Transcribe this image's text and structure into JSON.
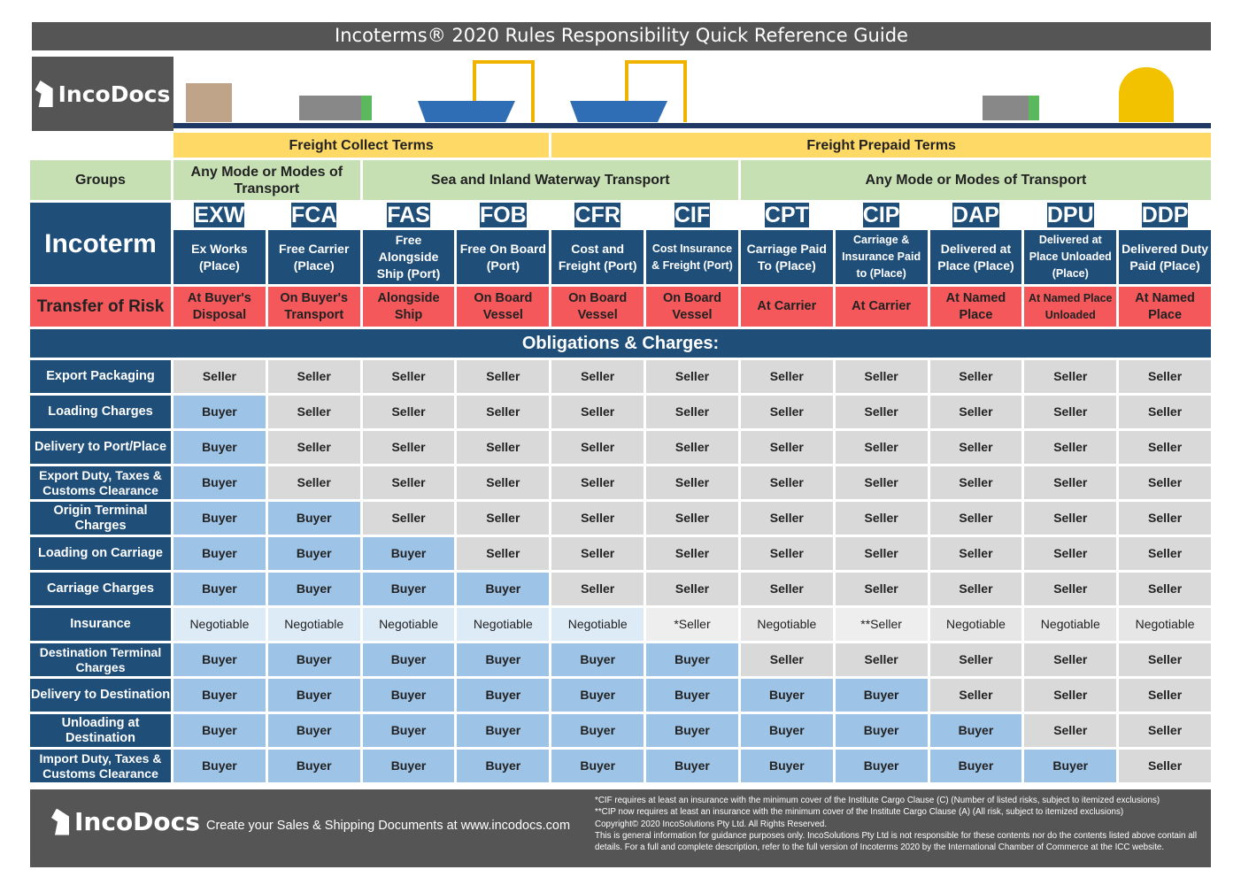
{
  "title": "Incoterms® 2020 Rules Responsibility Quick Reference Guide",
  "brand": "IncoDocs",
  "freight": [
    {
      "label": "Freight Collect Terms",
      "span": 4
    },
    {
      "label": "Freight Prepaid Terms",
      "span": 7
    }
  ],
  "groups_label": "Groups",
  "groups": [
    {
      "label": "Any Mode or Modes of Transport",
      "span": 2
    },
    {
      "label": "Sea and Inland Waterway Transport",
      "span": 4
    },
    {
      "label": "Any Mode or Modes of Transport",
      "span": 5
    }
  ],
  "incoterm_label": "Incoterm",
  "risk_label": "Transfer of Risk",
  "terms": [
    {
      "code": "EXW",
      "name": "Ex Works (Place)",
      "risk": "At Buyer's Disposal"
    },
    {
      "code": "FCA",
      "name": "Free Carrier (Place)",
      "risk": "On Buyer's Transport"
    },
    {
      "code": "FAS",
      "name": "Free Alongside Ship (Port)",
      "risk": "Alongside Ship"
    },
    {
      "code": "FOB",
      "name": "Free On Board (Port)",
      "risk": "On Board Vessel"
    },
    {
      "code": "CFR",
      "name": "Cost and Freight (Port)",
      "risk": "On Board Vessel"
    },
    {
      "code": "CIF",
      "name": "Cost Insurance & Freight (Port)",
      "risk": "On Board Vessel"
    },
    {
      "code": "CPT",
      "name": "Carriage Paid To (Place)",
      "risk": "At Carrier"
    },
    {
      "code": "CIP",
      "name": "Carriage & Insurance Paid to (Place)",
      "risk": "At Carrier"
    },
    {
      "code": "DAP",
      "name": "Delivered at Place (Place)",
      "risk": "At Named Place"
    },
    {
      "code": "DPU",
      "name": "Delivered at Place Unloaded (Place)",
      "risk": "At Named Place Unloaded"
    },
    {
      "code": "DDP",
      "name": "Delivered Duty Paid (Place)",
      "risk": "At Named Place"
    }
  ],
  "obligations_title": "Obligations & Charges:",
  "obligations": [
    {
      "label": "Export Packaging",
      "values": [
        "Seller",
        "Seller",
        "Seller",
        "Seller",
        "Seller",
        "Seller",
        "Seller",
        "Seller",
        "Seller",
        "Seller",
        "Seller"
      ]
    },
    {
      "label": "Loading Charges",
      "values": [
        "Buyer",
        "Seller",
        "Seller",
        "Seller",
        "Seller",
        "Seller",
        "Seller",
        "Seller",
        "Seller",
        "Seller",
        "Seller"
      ]
    },
    {
      "label": "Delivery to Port/Place",
      "values": [
        "Buyer",
        "Seller",
        "Seller",
        "Seller",
        "Seller",
        "Seller",
        "Seller",
        "Seller",
        "Seller",
        "Seller",
        "Seller"
      ]
    },
    {
      "label": "Export Duty, Taxes & Customs Clearance",
      "values": [
        "Buyer",
        "Seller",
        "Seller",
        "Seller",
        "Seller",
        "Seller",
        "Seller",
        "Seller",
        "Seller",
        "Seller",
        "Seller"
      ]
    },
    {
      "label": "Origin Terminal Charges",
      "values": [
        "Buyer",
        "Buyer",
        "Seller",
        "Seller",
        "Seller",
        "Seller",
        "Seller",
        "Seller",
        "Seller",
        "Seller",
        "Seller"
      ]
    },
    {
      "label": "Loading on Carriage",
      "values": [
        "Buyer",
        "Buyer",
        "Buyer",
        "Seller",
        "Seller",
        "Seller",
        "Seller",
        "Seller",
        "Seller",
        "Seller",
        "Seller"
      ]
    },
    {
      "label": "Carriage Charges",
      "values": [
        "Buyer",
        "Buyer",
        "Buyer",
        "Buyer",
        "Seller",
        "Seller",
        "Seller",
        "Seller",
        "Seller",
        "Seller",
        "Seller"
      ]
    },
    {
      "label": "Insurance",
      "values": [
        "Negotiable",
        "Negotiable",
        "Negotiable",
        "Negotiable",
        "Negotiable",
        "*Seller",
        "Negotiable",
        "**Seller",
        "Negotiable",
        "Negotiable",
        "Negotiable"
      ]
    },
    {
      "label": "Destination Terminal Charges",
      "values": [
        "Buyer",
        "Buyer",
        "Buyer",
        "Buyer",
        "Buyer",
        "Buyer",
        "Seller",
        "Seller",
        "Seller",
        "Seller",
        "Seller"
      ]
    },
    {
      "label": "Delivery to Destination",
      "values": [
        "Buyer",
        "Buyer",
        "Buyer",
        "Buyer",
        "Buyer",
        "Buyer",
        "Buyer",
        "Buyer",
        "Seller",
        "Seller",
        "Seller"
      ]
    },
    {
      "label": "Unloading at Destination",
      "values": [
        "Buyer",
        "Buyer",
        "Buyer",
        "Buyer",
        "Buyer",
        "Buyer",
        "Buyer",
        "Buyer",
        "Buyer",
        "Seller",
        "Seller"
      ]
    },
    {
      "label": "Import Duty, Taxes & Customs Clearance",
      "values": [
        "Buyer",
        "Buyer",
        "Buyer",
        "Buyer",
        "Buyer",
        "Buyer",
        "Buyer",
        "Buyer",
        "Buyer",
        "Buyer",
        "Seller"
      ]
    }
  ],
  "footer": {
    "tagline": "Create your Sales & Shipping Documents at www.incodocs.com",
    "notes": [
      "*CIF requires at least an insurance with the minimum cover of the Institute Cargo Clause (C) (Number of listed risks, subject to itemized exclusions)",
      "**CIP now requires at least an insurance with the minimum cover of the Institute Cargo Clause (A) (All risk, subject to itemized exclusions)",
      "Copyright© 2020 IncoSolutions Pty Ltd. All Rights Reserved.",
      "This is general information for guidance purposes only.  IncoSolutions Pty Ltd is not responsible for these contents nor do the contents listed above contain all details.  For a full and complete description, refer to the full version of Incoterms    2020 by the International Chamber of Commerce at the ICC website."
    ]
  },
  "colors": {
    "navy": "#1f4e79",
    "seller": "#d9d9d9",
    "buyer": "#9dc3e6",
    "risk": "#f4585a",
    "freight": "#ffd966",
    "group": "#c6e0b4"
  }
}
